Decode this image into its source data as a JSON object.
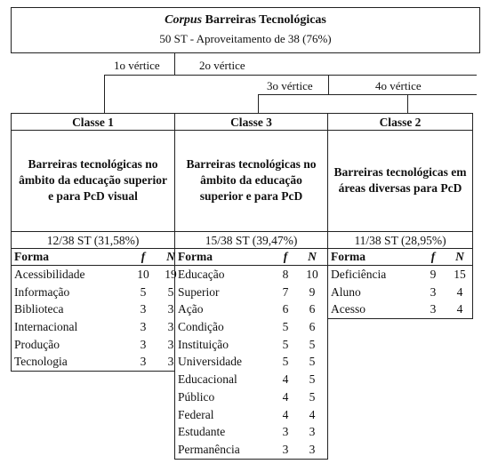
{
  "header": {
    "title_italic": "Corpus",
    "title_rest": " Barreiras Tecnológicas",
    "subtitle": "50 ST - Aproveitamento de 38 (76%)"
  },
  "vertices": {
    "v1": "1o vértice",
    "v2": "2o vértice",
    "v3": "3o vértice",
    "v4": "4o vértice"
  },
  "classes": [
    {
      "title": "Classe 1",
      "description": "Barreiras tecnológicas no âmbito da educação superior e para PcD visual",
      "st": "12/38 ST (31,58%)",
      "col_word": "Forma",
      "col_f": "f",
      "col_n": "N",
      "rows": [
        {
          "word": "Acessibilidade",
          "f": "10",
          "n": "19"
        },
        {
          "word": "Informação",
          "f": "5",
          "n": "5"
        },
        {
          "word": "Biblioteca",
          "f": "3",
          "n": "3"
        },
        {
          "word": "Internacional",
          "f": "3",
          "n": "3"
        },
        {
          "word": "Produção",
          "f": "3",
          "n": "3"
        },
        {
          "word": "Tecnologia",
          "f": "3",
          "n": "3"
        }
      ]
    },
    {
      "title": "Classe 3",
      "description": "Barreiras tecnológicas no âmbito da educação superior e para PcD",
      "st": "15/38 ST (39,47%)",
      "col_word": "Forma",
      "col_f": "f",
      "col_n": "N",
      "rows": [
        {
          "word": "Educação",
          "f": "8",
          "n": "10"
        },
        {
          "word": "Superior",
          "f": "7",
          "n": "9"
        },
        {
          "word": "Ação",
          "f": "6",
          "n": "6"
        },
        {
          "word": "Condição",
          "f": "5",
          "n": "6"
        },
        {
          "word": "Instituição",
          "f": "5",
          "n": "5"
        },
        {
          "word": "Universidade",
          "f": "5",
          "n": "5"
        },
        {
          "word": "Educacional",
          "f": "4",
          "n": "5"
        },
        {
          "word": "Público",
          "f": "4",
          "n": "5"
        },
        {
          "word": "Federal",
          "f": "4",
          "n": "4"
        },
        {
          "word": "Estudante",
          "f": "3",
          "n": "3"
        },
        {
          "word": "Permanência",
          "f": "3",
          "n": "3"
        }
      ]
    },
    {
      "title": "Classe 2",
      "description": "Barreiras tecnológicas em áreas diversas para PcD",
      "st": "11/38 ST (28,95%)",
      "col_word": "Forma",
      "col_f": "f",
      "col_n": "N",
      "rows": [
        {
          "word": "Deficiência",
          "f": "9",
          "n": "15"
        },
        {
          "word": "Aluno",
          "f": "3",
          "n": "4"
        },
        {
          "word": "Acesso",
          "f": "3",
          "n": "4"
        }
      ]
    }
  ]
}
